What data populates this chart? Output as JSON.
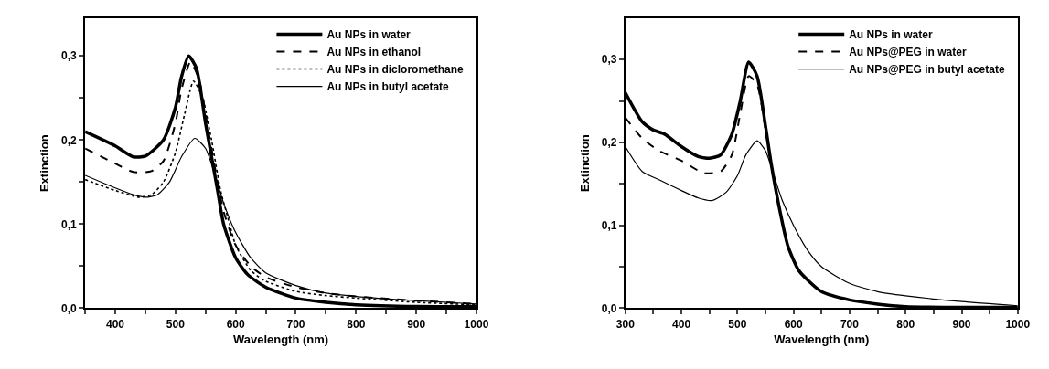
{
  "chart_data": [
    {
      "type": "line",
      "xlabel": "Wavelength (nm)",
      "ylabel": "Extinction",
      "xlim": [
        350,
        1000
      ],
      "ylim": [
        0,
        0.345
      ],
      "xticks": [
        {
          "value": 350,
          "label": null
        },
        400,
        {
          "value": 450,
          "label": null
        },
        500,
        {
          "value": 550,
          "label": null
        },
        600,
        {
          "value": 650,
          "label": null
        },
        700,
        {
          "value": 750,
          "label": null
        },
        800,
        {
          "value": 850,
          "label": null
        },
        900,
        {
          "value": 950,
          "label": null
        },
        1000
      ],
      "yticks": [
        {
          "value": 0,
          "label": "0,0"
        },
        {
          "value": 0.05,
          "label": null
        },
        {
          "value": 0.1,
          "label": "0,1"
        },
        {
          "value": 0.15,
          "label": null
        },
        {
          "value": 0.2,
          "label": "0,2"
        },
        {
          "value": 0.25,
          "label": null
        },
        {
          "value": 0.3,
          "label": "0,3"
        }
      ],
      "legend": "top right",
      "marker": "none",
      "series": [
        {
          "name": "Au NPs in water",
          "color": "#000000",
          "line_style": "solid",
          "x": [
            350,
            400,
            430,
            450,
            480,
            500,
            510,
            522,
            535,
            550,
            560,
            570,
            580,
            600,
            620,
            650,
            700,
            750,
            800,
            900,
            1000
          ],
          "values": [
            0.21,
            0.193,
            0.18,
            0.181,
            0.2,
            0.239,
            0.275,
            0.3,
            0.285,
            0.22,
            0.18,
            0.14,
            0.1,
            0.06,
            0.04,
            0.025,
            0.012,
            0.007,
            0.004,
            0.002,
            0.002
          ]
        },
        {
          "name": "Au NPs in ethanol",
          "color": "#000000",
          "line_style": "dashed",
          "x": [
            350,
            400,
            430,
            460,
            480,
            500,
            510,
            525,
            540,
            555,
            570,
            580,
            600,
            625,
            650,
            700,
            750,
            800,
            900,
            1000
          ],
          "values": [
            0.19,
            0.172,
            0.162,
            0.163,
            0.175,
            0.22,
            0.26,
            0.293,
            0.27,
            0.21,
            0.15,
            0.115,
            0.075,
            0.05,
            0.037,
            0.025,
            0.018,
            0.014,
            0.009,
            0.005
          ]
        },
        {
          "name": "Au NPs in dicloromethane",
          "color": "#000000",
          "line_style": "dotted",
          "x": [
            350,
            400,
            440,
            460,
            480,
            500,
            515,
            530,
            545,
            560,
            575,
            590,
            600,
            625,
            650,
            700,
            750,
            800,
            900,
            1000
          ],
          "values": [
            0.153,
            0.14,
            0.132,
            0.135,
            0.15,
            0.185,
            0.23,
            0.27,
            0.25,
            0.2,
            0.14,
            0.1,
            0.075,
            0.045,
            0.032,
            0.02,
            0.015,
            0.012,
            0.007,
            0.004
          ]
        },
        {
          "name": "Au NPs in butyl acetate",
          "color": "#000000",
          "line_style": "solid",
          "x": [
            350,
            400,
            430,
            450,
            470,
            490,
            510,
            532,
            550,
            565,
            580,
            600,
            625,
            650,
            700,
            750,
            800,
            900,
            1000
          ],
          "values": [
            0.158,
            0.143,
            0.135,
            0.132,
            0.135,
            0.15,
            0.18,
            0.202,
            0.19,
            0.16,
            0.125,
            0.09,
            0.06,
            0.042,
            0.027,
            0.018,
            0.014,
            0.009,
            0.005
          ]
        }
      ]
    },
    {
      "type": "line",
      "xlabel": "Wavelength (nm)",
      "ylabel": "Extinction",
      "xlim": [
        300,
        1000
      ],
      "ylim": [
        0,
        0.35
      ],
      "xticks": [
        300,
        {
          "value": 350,
          "label": null
        },
        400,
        {
          "value": 450,
          "label": null
        },
        500,
        {
          "value": 550,
          "label": null
        },
        600,
        {
          "value": 650,
          "label": null
        },
        700,
        {
          "value": 750,
          "label": null
        },
        800,
        {
          "value": 850,
          "label": null
        },
        900,
        {
          "value": 950,
          "label": null
        },
        1000
      ],
      "yticks": [
        {
          "value": 0,
          "label": "0,0"
        },
        {
          "value": 0.05,
          "label": null
        },
        {
          "value": 0.1,
          "label": "0,1"
        },
        {
          "value": 0.15,
          "label": null
        },
        {
          "value": 0.2,
          "label": "0,2"
        },
        {
          "value": 0.25,
          "label": null
        },
        {
          "value": 0.3,
          "label": "0,3"
        }
      ],
      "legend": "top right",
      "marker": "none",
      "series": [
        {
          "name": "Au NPs in water",
          "color": "#000000",
          "line_style": "solid",
          "x": [
            300,
            330,
            350,
            370,
            400,
            430,
            450,
            470,
            490,
            505,
            520,
            535,
            550,
            560,
            575,
            590,
            610,
            650,
            700,
            750,
            800,
            900,
            1000
          ],
          "values": [
            0.26,
            0.225,
            0.215,
            0.21,
            0.195,
            0.183,
            0.181,
            0.185,
            0.21,
            0.25,
            0.297,
            0.28,
            0.22,
            0.175,
            0.12,
            0.075,
            0.045,
            0.02,
            0.01,
            0.005,
            0.002,
            0.001,
            0.001
          ]
        },
        {
          "name": "Au NPs@PEG in water",
          "color": "#000000",
          "line_style": "dashed",
          "x": [
            300,
            330,
            360,
            400,
            440,
            470,
            490,
            505,
            520,
            535,
            550,
            560,
            575,
            590,
            610,
            650,
            700,
            800,
            1000
          ],
          "values": [
            0.23,
            0.205,
            0.19,
            0.178,
            0.163,
            0.165,
            0.185,
            0.235,
            0.28,
            0.27,
            0.215,
            0.175,
            0.12,
            0.075,
            0.045,
            0.02,
            0.01,
            0.002,
            0.001
          ]
        },
        {
          "name": "Au NPs@PEG in butyl acetate",
          "color": "#000000",
          "line_style": "solid",
          "x": [
            300,
            330,
            360,
            400,
            430,
            455,
            480,
            500,
            515,
            535,
            550,
            565,
            580,
            600,
            625,
            650,
            700,
            750,
            800,
            900,
            1000
          ],
          "values": [
            0.195,
            0.165,
            0.155,
            0.142,
            0.133,
            0.13,
            0.14,
            0.16,
            0.185,
            0.202,
            0.19,
            0.16,
            0.13,
            0.1,
            0.07,
            0.05,
            0.03,
            0.02,
            0.015,
            0.008,
            0.003
          ]
        }
      ]
    }
  ]
}
